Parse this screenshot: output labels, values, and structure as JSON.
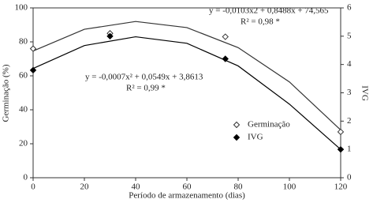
{
  "chart_data": {
    "type": "scatter",
    "xlabel": "Período de armazenamento (dias)",
    "ylabel": "Germinação (%)",
    "y2label": "IVG",
    "xlim": [
      0,
      120
    ],
    "xticks": [
      0,
      20,
      40,
      60,
      80,
      100,
      120
    ],
    "ylim": [
      0,
      100
    ],
    "yticks": [
      0,
      20,
      40,
      60,
      80,
      100
    ],
    "y2lim": [
      0,
      6
    ],
    "y2ticks": [
      0,
      1,
      2,
      3,
      4,
      5,
      6
    ],
    "legend": "lower-right",
    "series": [
      {
        "name": "Germinação",
        "color": "#333333",
        "marker": "open-diamond",
        "x": [
          0,
          30,
          75,
          120
        ],
        "values": [
          76,
          85,
          83,
          27
        ],
        "fit": {
          "x": [
            0,
            20,
            40,
            60,
            80,
            100,
            120
          ],
          "values": [
            74.6,
            87.4,
            92.0,
            88.4,
            76.6,
            56.4,
            28.1
          ]
        }
      },
      {
        "name": "IVG",
        "color": "#000000",
        "marker": "filled-diamond",
        "axis": "y2",
        "x": [
          0,
          30,
          75,
          120
        ],
        "values": [
          3.8,
          5.0,
          4.2,
          1.0
        ],
        "fit": {
          "x": [
            0,
            20,
            40,
            60,
            80,
            100,
            120
          ],
          "values": [
            3.86,
            4.67,
            4.98,
            4.75,
            3.95,
            2.6,
            1.0
          ]
        }
      }
    ],
    "annotations": [
      {
        "text": "y = -0,0103x2 + 0,8488x + 74,565",
        "subtext": "R² = 0,98 *"
      },
      {
        "text": "y = -0,0007x² + 0,0549x + 3,8613",
        "subtext": "R² = 0,99 *"
      }
    ]
  }
}
